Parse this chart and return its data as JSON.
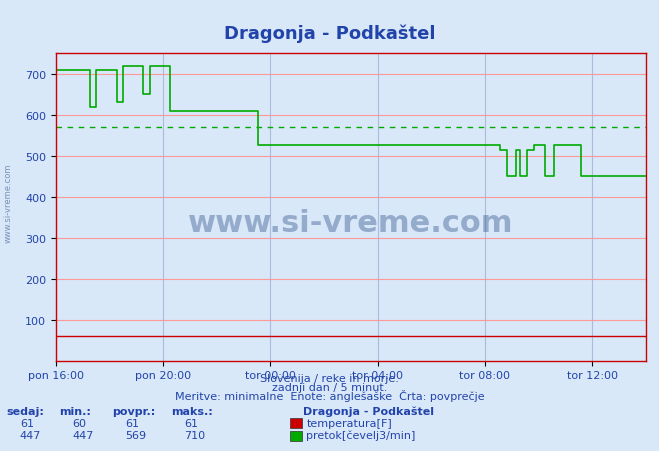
{
  "title": "Dragonja - Podkaštel",
  "title_color": "#2244aa",
  "bg_color": "#d8e8f8",
  "plot_bg_color": "#d8e8f8",
  "grid_color_h": "#ff9999",
  "grid_color_v": "#aabbdd",
  "xlabel_color": "#2244aa",
  "ylabel_color": "#2244aa",
  "xticklabels": [
    "pon 16:00",
    "pon 20:00",
    "tor 00:00",
    "tor 04:00",
    "tor 08:00",
    "tor 12:00"
  ],
  "yticks": [
    100,
    200,
    300,
    400,
    500,
    600,
    700
  ],
  "ylim": [
    0,
    750
  ],
  "avg_flow": 569,
  "temp_value": 61,
  "footer_lines": [
    "Slovenija / reke in morje.",
    "zadnji dan / 5 minut.",
    "Meritve: minimalne  Enote: anglešaške  Črta: povprečje"
  ],
  "footer_color": "#2244aa",
  "table_header": [
    "sedaj:",
    "min.:",
    "povpr.:",
    "maks.:"
  ],
  "table_color": "#2244aa",
  "station_label": "Dragonja - Podkaštel",
  "temp_row": [
    "61",
    "60",
    "61",
    "61"
  ],
  "flow_row": [
    "447",
    "447",
    "569",
    "710"
  ],
  "temp_label": "temperatura[F]",
  "flow_label": "pretok[čevelj3/min]",
  "temp_color": "#cc0000",
  "flow_color": "#00aa00",
  "watermark": "www.si-vreme.com",
  "watermark_color": "#1a3a7a",
  "num_points": 288
}
